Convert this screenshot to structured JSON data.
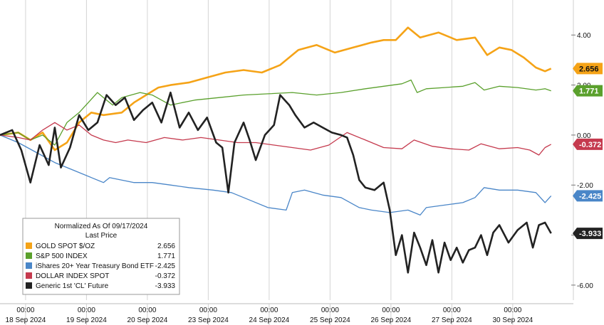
{
  "chart_data": {
    "type": "line",
    "legend": {
      "header": "Normalized As Of 09/17/2024",
      "subheader": "Last Price",
      "placement": "bottom-left"
    },
    "ylim": [
      -6.6,
      5.4
    ],
    "yticks": [
      {
        "value": 4,
        "label": "4.00"
      },
      {
        "value": 2,
        "label": "2.00"
      },
      {
        "value": 0,
        "label": "0.00"
      },
      {
        "value": -2,
        "label": "-2.00"
      },
      {
        "value": -4,
        "label": "-4.00"
      },
      {
        "value": -6,
        "label": "-6.00"
      }
    ],
    "xlim": [
      0,
      9.1
    ],
    "day_ticks": [
      {
        "x": 0.42,
        "time": "00:00",
        "date": "18 Sep 2024"
      },
      {
        "x": 1.42,
        "time": "00:00",
        "date": "19 Sep 2024"
      },
      {
        "x": 2.42,
        "time": "00:00",
        "date": "20 Sep 2024"
      },
      {
        "x": 3.42,
        "time": "00:00",
        "date": "23 Sep 2024"
      },
      {
        "x": 4.42,
        "time": "00:00",
        "date": "24 Sep 2024"
      },
      {
        "x": 5.42,
        "time": "00:00",
        "date": "25 Sep 2024"
      },
      {
        "x": 6.42,
        "time": "00:00",
        "date": "26 Sep 2024"
      },
      {
        "x": 7.42,
        "time": "00:00",
        "date": "27 Sep 2024"
      },
      {
        "x": 8.42,
        "time": "00:00",
        "date": "30 Sep 2024"
      }
    ],
    "series": [
      {
        "name": "GOLD SPOT $/OZ",
        "last": "2.656",
        "color": "#f5a317",
        "points": [
          [
            0,
            0
          ],
          [
            0.3,
            0.1
          ],
          [
            0.5,
            -0.2
          ],
          [
            0.7,
            0.1
          ],
          [
            0.9,
            -0.6
          ],
          [
            1.1,
            -0.3
          ],
          [
            1.3,
            0.5
          ],
          [
            1.5,
            0.9
          ],
          [
            1.7,
            0.8
          ],
          [
            2.0,
            0.9
          ],
          [
            2.2,
            1.3
          ],
          [
            2.4,
            1.6
          ],
          [
            2.6,
            1.9
          ],
          [
            2.8,
            2.0
          ],
          [
            3.1,
            2.1
          ],
          [
            3.4,
            2.3
          ],
          [
            3.7,
            2.5
          ],
          [
            4.0,
            2.6
          ],
          [
            4.3,
            2.5
          ],
          [
            4.6,
            2.8
          ],
          [
            4.9,
            3.4
          ],
          [
            5.2,
            3.6
          ],
          [
            5.5,
            3.3
          ],
          [
            5.8,
            3.5
          ],
          [
            6.1,
            3.7
          ],
          [
            6.3,
            3.8
          ],
          [
            6.5,
            3.8
          ],
          [
            6.7,
            4.3
          ],
          [
            6.9,
            3.9
          ],
          [
            7.2,
            4.1
          ],
          [
            7.5,
            3.8
          ],
          [
            7.8,
            3.9
          ],
          [
            8.0,
            3.2
          ],
          [
            8.2,
            3.5
          ],
          [
            8.4,
            3.4
          ],
          [
            8.6,
            3.1
          ],
          [
            8.8,
            2.7
          ],
          [
            8.95,
            2.55
          ],
          [
            9.05,
            2.66
          ]
        ]
      },
      {
        "name": "S&P 500 INDEX",
        "last": "1.771",
        "color": "#5aa02c",
        "points": [
          [
            0,
            0
          ],
          [
            0.3,
            0.1
          ],
          [
            0.5,
            -0.2
          ],
          [
            0.7,
            0.0
          ],
          [
            0.9,
            -0.4
          ],
          [
            1.1,
            0.5
          ],
          [
            1.3,
            0.9
          ],
          [
            1.45,
            1.3
          ],
          [
            1.6,
            1.7
          ],
          [
            1.7,
            1.5
          ],
          [
            1.85,
            1.2
          ],
          [
            2.0,
            1.5
          ],
          [
            2.3,
            1.7
          ],
          [
            2.5,
            1.6
          ],
          [
            2.8,
            1.2
          ],
          [
            3.2,
            1.4
          ],
          [
            3.6,
            1.5
          ],
          [
            4.0,
            1.6
          ],
          [
            4.4,
            1.65
          ],
          [
            4.8,
            1.7
          ],
          [
            5.2,
            1.6
          ],
          [
            5.6,
            1.7
          ],
          [
            6.0,
            1.85
          ],
          [
            6.3,
            1.95
          ],
          [
            6.6,
            2.05
          ],
          [
            6.75,
            2.2
          ],
          [
            6.85,
            1.7
          ],
          [
            7.0,
            1.85
          ],
          [
            7.3,
            1.9
          ],
          [
            7.6,
            1.95
          ],
          [
            7.8,
            2.1
          ],
          [
            7.95,
            1.8
          ],
          [
            8.2,
            1.95
          ],
          [
            8.5,
            1.9
          ],
          [
            8.8,
            1.8
          ],
          [
            8.95,
            1.85
          ],
          [
            9.05,
            1.77
          ]
        ]
      },
      {
        "name": "iShares 20+ Year Treasury Bond ETF",
        "last": "-2.425",
        "color": "#4a86c8",
        "points": [
          [
            0,
            0
          ],
          [
            0.3,
            -0.3
          ],
          [
            0.6,
            -0.7
          ],
          [
            0.9,
            -1.1
          ],
          [
            1.2,
            -1.4
          ],
          [
            1.5,
            -1.7
          ],
          [
            1.7,
            -1.9
          ],
          [
            1.8,
            -1.7
          ],
          [
            2.0,
            -1.8
          ],
          [
            2.2,
            -1.9
          ],
          [
            2.5,
            -1.9
          ],
          [
            2.8,
            -2.0
          ],
          [
            3.1,
            -2.1
          ],
          [
            3.5,
            -2.2
          ],
          [
            3.8,
            -2.3
          ],
          [
            4.1,
            -2.6
          ],
          [
            4.4,
            -2.9
          ],
          [
            4.7,
            -3.0
          ],
          [
            4.8,
            -2.3
          ],
          [
            5.0,
            -2.2
          ],
          [
            5.3,
            -2.4
          ],
          [
            5.6,
            -2.5
          ],
          [
            5.9,
            -2.9
          ],
          [
            6.1,
            -3.0
          ],
          [
            6.4,
            -3.1
          ],
          [
            6.7,
            -3.0
          ],
          [
            6.9,
            -3.2
          ],
          [
            7.0,
            -2.9
          ],
          [
            7.3,
            -2.8
          ],
          [
            7.6,
            -2.7
          ],
          [
            7.8,
            -2.5
          ],
          [
            7.95,
            -2.1
          ],
          [
            8.2,
            -2.2
          ],
          [
            8.5,
            -2.2
          ],
          [
            8.8,
            -2.3
          ],
          [
            8.95,
            -2.7
          ],
          [
            9.05,
            -2.43
          ]
        ]
      },
      {
        "name": "DOLLAR INDEX SPOT",
        "last": "-0.372",
        "color": "#c53a4e",
        "points": [
          [
            0,
            0
          ],
          [
            0.3,
            -0.1
          ],
          [
            0.5,
            -0.2
          ],
          [
            0.7,
            0.2
          ],
          [
            0.9,
            0.5
          ],
          [
            1.1,
            0.2
          ],
          [
            1.3,
            0.4
          ],
          [
            1.5,
            0.0
          ],
          [
            1.7,
            -0.2
          ],
          [
            1.9,
            -0.3
          ],
          [
            2.1,
            -0.2
          ],
          [
            2.4,
            -0.3
          ],
          [
            2.7,
            -0.1
          ],
          [
            3.0,
            -0.2
          ],
          [
            3.3,
            -0.1
          ],
          [
            3.6,
            -0.2
          ],
          [
            3.9,
            -0.3
          ],
          [
            4.2,
            -0.3
          ],
          [
            4.5,
            -0.4
          ],
          [
            4.8,
            -0.5
          ],
          [
            5.1,
            -0.6
          ],
          [
            5.4,
            -0.4
          ],
          [
            5.7,
            0.1
          ],
          [
            6.0,
            -0.2
          ],
          [
            6.3,
            -0.5
          ],
          [
            6.6,
            -0.55
          ],
          [
            6.8,
            -0.2
          ],
          [
            7.1,
            -0.45
          ],
          [
            7.4,
            -0.55
          ],
          [
            7.7,
            -0.6
          ],
          [
            7.9,
            -0.35
          ],
          [
            8.2,
            -0.55
          ],
          [
            8.5,
            -0.5
          ],
          [
            8.7,
            -0.6
          ],
          [
            8.85,
            -0.8
          ],
          [
            8.95,
            -0.5
          ],
          [
            9.05,
            -0.37
          ]
        ]
      },
      {
        "name": "Generic 1st 'CL' Future",
        "last": "-3.933",
        "color": "#222222",
        "points": [
          [
            0,
            0
          ],
          [
            0.2,
            0.2
          ],
          [
            0.35,
            -0.6
          ],
          [
            0.5,
            -1.9
          ],
          [
            0.65,
            -0.4
          ],
          [
            0.8,
            -1.2
          ],
          [
            0.9,
            0.3
          ],
          [
            1.0,
            -1.3
          ],
          [
            1.15,
            -0.5
          ],
          [
            1.3,
            0.8
          ],
          [
            1.45,
            0.2
          ],
          [
            1.6,
            0.5
          ],
          [
            1.75,
            1.6
          ],
          [
            1.9,
            1.2
          ],
          [
            2.05,
            1.5
          ],
          [
            2.2,
            0.6
          ],
          [
            2.35,
            1.0
          ],
          [
            2.5,
            1.3
          ],
          [
            2.65,
            0.5
          ],
          [
            2.8,
            1.7
          ],
          [
            2.95,
            0.3
          ],
          [
            3.1,
            0.9
          ],
          [
            3.25,
            0.2
          ],
          [
            3.4,
            0.7
          ],
          [
            3.55,
            -0.3
          ],
          [
            3.65,
            -0.5
          ],
          [
            3.75,
            -2.3
          ],
          [
            3.85,
            -0.3
          ],
          [
            4.0,
            0.5
          ],
          [
            4.1,
            -0.2
          ],
          [
            4.2,
            -1.0
          ],
          [
            4.35,
            0.0
          ],
          [
            4.5,
            0.4
          ],
          [
            4.6,
            1.6
          ],
          [
            4.75,
            1.2
          ],
          [
            4.85,
            0.8
          ],
          [
            5.0,
            0.3
          ],
          [
            5.15,
            0.5
          ],
          [
            5.3,
            0.3
          ],
          [
            5.45,
            0.1
          ],
          [
            5.6,
            0.0
          ],
          [
            5.7,
            -0.1
          ],
          [
            5.8,
            -0.8
          ],
          [
            5.9,
            -1.8
          ],
          [
            6.0,
            -2.1
          ],
          [
            6.15,
            -2.2
          ],
          [
            6.3,
            -1.9
          ],
          [
            6.4,
            -3.0
          ],
          [
            6.5,
            -4.8
          ],
          [
            6.6,
            -4.0
          ],
          [
            6.7,
            -5.5
          ],
          [
            6.8,
            -3.9
          ],
          [
            6.9,
            -4.5
          ],
          [
            7.0,
            -5.2
          ],
          [
            7.1,
            -4.2
          ],
          [
            7.2,
            -5.5
          ],
          [
            7.3,
            -4.3
          ],
          [
            7.4,
            -5.0
          ],
          [
            7.5,
            -4.5
          ],
          [
            7.6,
            -5.1
          ],
          [
            7.7,
            -4.6
          ],
          [
            7.8,
            -4.5
          ],
          [
            7.9,
            -4.0
          ],
          [
            8.0,
            -4.8
          ],
          [
            8.1,
            -3.9
          ],
          [
            8.2,
            -3.6
          ],
          [
            8.35,
            -4.3
          ],
          [
            8.5,
            -3.8
          ],
          [
            8.65,
            -3.5
          ],
          [
            8.75,
            -4.5
          ],
          [
            8.85,
            -3.6
          ],
          [
            8.95,
            -3.5
          ],
          [
            9.05,
            -3.93
          ]
        ]
      }
    ]
  }
}
